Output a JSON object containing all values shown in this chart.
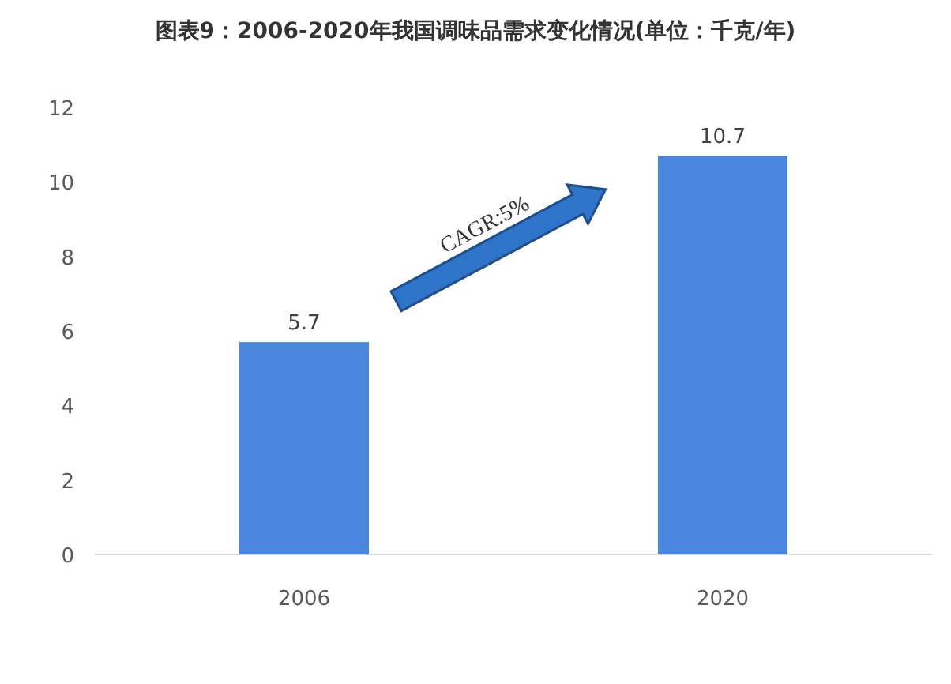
{
  "chart_data": {
    "type": "bar",
    "title": "图表9：2006-2020年我国调味品需求变化情况(单位：千克/年)",
    "categories": [
      "2006",
      "2020"
    ],
    "values": [
      5.7,
      10.7
    ],
    "color": "#4a86e0",
    "ylim": [
      0,
      12
    ],
    "yticks": [
      0,
      2,
      4,
      6,
      8,
      10,
      12
    ],
    "data_labels": true,
    "grid": false,
    "annotations": [
      "CAGR:5%"
    ]
  }
}
